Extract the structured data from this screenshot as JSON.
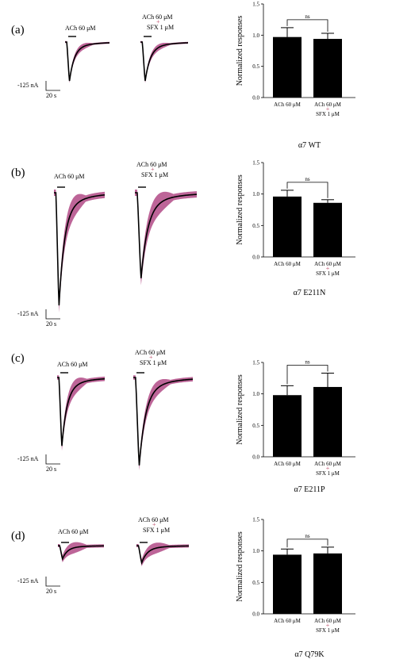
{
  "chart_data": [
    {
      "type": "bar",
      "panel": "(a)",
      "trace_labels": {
        "ach": "ACh 60 μM",
        "combo_line1": "ACh 60 μM",
        "plus": "+",
        "combo_line2": "SFX 1 μM"
      },
      "scale_bar": {
        "current": "-125 nA",
        "time": "20 s"
      },
      "categories": [
        "ACh 60 μM",
        "ACh 60 μM + SFX 1 μM"
      ],
      "category_lines": [
        [
          "ACh 60 μM",
          ""
        ],
        [
          "ACh 60 μM",
          "SFX 1 μM"
        ]
      ],
      "values": [
        0.97,
        0.94
      ],
      "errors": [
        0.15,
        0.09
      ],
      "significance": "ns",
      "ylabel": "Normalized responses",
      "ylim": [
        0,
        1.5
      ],
      "yticks": [
        "0.0",
        "0.5",
        "1.0",
        "1.5"
      ],
      "xlabel": "α7 WT"
    },
    {
      "type": "bar",
      "panel": "(b)",
      "trace_labels": {
        "ach": "ACh 60 μM",
        "combo_line1": "ACh 60 μM",
        "plus": "+",
        "combo_line2": "SFX 1 μM"
      },
      "scale_bar": {
        "current": "-125 nA",
        "time": "20 s"
      },
      "categories": [
        "ACh 60 μM",
        "ACh 60 μM + SFX 1 μM"
      ],
      "category_lines": [
        [
          "ACh 60 μM",
          ""
        ],
        [
          "ACh 60 μM",
          "SFX 1 μM"
        ]
      ],
      "values": [
        0.96,
        0.86
      ],
      "errors": [
        0.1,
        0.05
      ],
      "significance": "ns",
      "ylabel": "Normalized responses",
      "ylim": [
        0,
        1.5
      ],
      "yticks": [
        "0.0",
        "0.5",
        "1.0",
        "1.5"
      ],
      "xlabel": "α7 E211N"
    },
    {
      "type": "bar",
      "panel": "(c)",
      "trace_labels": {
        "ach": "ACh 60 μM",
        "combo_line1": "ACh 60 μM",
        "plus": "+",
        "combo_line2": "SFX 1 μM"
      },
      "scale_bar": {
        "current": "-125 nA",
        "time": "20 s"
      },
      "categories": [
        "ACh 60 μM",
        "ACh 60 μM + SFX 1 μM"
      ],
      "category_lines": [
        [
          "ACh 60 μM",
          ""
        ],
        [
          "ACh 60 μM",
          "SFX 1 μM"
        ]
      ],
      "values": [
        0.98,
        1.11
      ],
      "errors": [
        0.15,
        0.22
      ],
      "significance": "ns",
      "ylabel": "Normalized responses",
      "ylim": [
        0,
        1.5
      ],
      "yticks": [
        "0.0",
        "0.5",
        "1.0",
        "1.5"
      ],
      "xlabel": "α7 E211P"
    },
    {
      "type": "bar",
      "panel": "(d)",
      "trace_labels": {
        "ach": "ACh 60 μM",
        "combo_line1": "ACh 60 μM",
        "plus": "+",
        "combo_line2": "SFX 1 μM"
      },
      "scale_bar": {
        "current": "-125 nA",
        "time": "20 s"
      },
      "categories": [
        "ACh 60 μM",
        "ACh 60 μM + SFX 1 μM"
      ],
      "category_lines": [
        [
          "ACh 60 μM",
          ""
        ],
        [
          "ACh 60 μM",
          "SFX 1 μM"
        ]
      ],
      "values": [
        0.94,
        0.96
      ],
      "errors": [
        0.09,
        0.1
      ],
      "significance": "ns",
      "ylabel": "Normalized responses",
      "ylim": [
        0,
        1.5
      ],
      "yticks": [
        "0.0",
        "0.5",
        "1.0",
        "1.5"
      ],
      "xlabel": "α7 Q79K"
    }
  ],
  "colors": {
    "trace": "#000000",
    "sem_band": "#b24a86",
    "bar": "#000000"
  }
}
